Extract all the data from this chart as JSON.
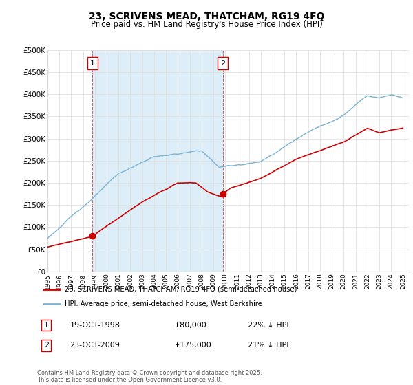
{
  "title": "23, SCRIVENS MEAD, THATCHAM, RG19 4FQ",
  "subtitle": "Price paid vs. HM Land Registry's House Price Index (HPI)",
  "ylim": [
    0,
    500000
  ],
  "yticks": [
    0,
    50000,
    100000,
    150000,
    200000,
    250000,
    300000,
    350000,
    400000,
    450000,
    500000
  ],
  "ytick_labels": [
    "£0",
    "£50K",
    "£100K",
    "£150K",
    "£200K",
    "£250K",
    "£300K",
    "£350K",
    "£400K",
    "£450K",
    "£500K"
  ],
  "hpi_color": "#7ab3d4",
  "price_color": "#cc0000",
  "sale1_year": 1998.79,
  "sale1_price": 80000,
  "sale2_year": 2009.79,
  "sale2_price": 175000,
  "shade_color": "#ddeef8",
  "legend_line1": "23, SCRIVENS MEAD, THATCHAM, RG19 4FQ (semi-detached house)",
  "legend_line2": "HPI: Average price, semi-detached house, West Berkshire",
  "table_row1": [
    "1",
    "19-OCT-1998",
    "£80,000",
    "22% ↓ HPI"
  ],
  "table_row2": [
    "2",
    "23-OCT-2009",
    "£175,000",
    "21% ↓ HPI"
  ],
  "copyright_text": "Contains HM Land Registry data © Crown copyright and database right 2025.\nThis data is licensed under the Open Government Licence v3.0.",
  "grid_color": "#e0e0e0",
  "marker_label_color": "#cc0000"
}
